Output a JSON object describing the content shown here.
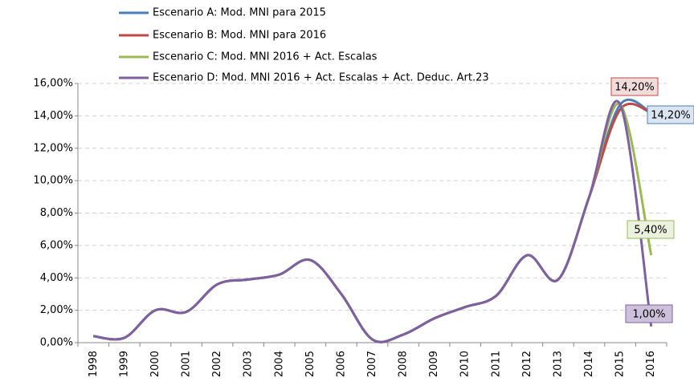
{
  "chart_data": {
    "type": "line",
    "categories": [
      "1998",
      "1999",
      "2000",
      "2001",
      "2002",
      "2003",
      "2004",
      "2005",
      "2006",
      "2007",
      "2008",
      "2009",
      "2010",
      "2011",
      "2012",
      "2013",
      "2014",
      "2015",
      "2016"
    ],
    "series": [
      {
        "name": "Escenario A: Mod. MNI para 2015",
        "color": "#4a7ebb",
        "values": [
          0.4,
          0.3,
          2.0,
          1.9,
          3.6,
          3.9,
          4.2,
          5.1,
          3.0,
          0.2,
          0.5,
          1.5,
          2.2,
          2.9,
          5.4,
          3.9,
          9.0,
          14.7,
          14.2
        ],
        "value_labels": [
          null,
          null,
          null,
          null,
          null,
          null,
          null,
          null,
          null,
          null,
          null,
          null,
          null,
          null,
          null,
          null,
          null,
          null,
          "14,20%"
        ],
        "label_fill": "#dbe5f1"
      },
      {
        "name": "Escenario B: Mod. MNI para 2016",
        "color": "#be4b48",
        "values": [
          0.4,
          0.3,
          2.0,
          1.9,
          3.6,
          3.9,
          4.2,
          5.1,
          3.0,
          0.2,
          0.5,
          1.5,
          2.2,
          2.9,
          5.4,
          3.9,
          9.0,
          14.4,
          14.2
        ],
        "value_labels": [
          null,
          null,
          null,
          null,
          null,
          null,
          null,
          null,
          null,
          null,
          null,
          null,
          null,
          null,
          null,
          null,
          null,
          null,
          "14,20%"
        ],
        "label_fill": "#f2dcdb"
      },
      {
        "name": "Escenario C: Mod. MNI 2016  + Act. Escalas",
        "color": "#98b954",
        "values": [
          0.4,
          0.3,
          2.0,
          1.9,
          3.6,
          3.9,
          4.2,
          5.1,
          3.0,
          0.2,
          0.5,
          1.5,
          2.2,
          2.9,
          5.4,
          3.9,
          9.0,
          14.7,
          5.4
        ],
        "value_labels": [
          null,
          null,
          null,
          null,
          null,
          null,
          null,
          null,
          null,
          null,
          null,
          null,
          null,
          null,
          null,
          null,
          null,
          null,
          "5,40%"
        ],
        "label_fill": "#ebf1de"
      },
      {
        "name": "Escenario D: Mod. MNI 2016  + Act. Escalas  + Act. Deduc. Art.23",
        "color": "#7d60a0",
        "values": [
          0.4,
          0.3,
          2.0,
          1.9,
          3.6,
          3.9,
          4.2,
          5.1,
          3.0,
          0.2,
          0.5,
          1.5,
          2.2,
          2.9,
          5.4,
          3.9,
          9.0,
          14.7,
          1.0
        ],
        "value_labels": [
          null,
          null,
          null,
          null,
          null,
          null,
          null,
          null,
          null,
          null,
          null,
          null,
          null,
          null,
          null,
          null,
          null,
          null,
          "1,00%"
        ],
        "label_fill": "#ccc0da"
      }
    ],
    "ylim": [
      0,
      16
    ],
    "yticks": [
      {
        "value": 0,
        "label": "0,00%"
      },
      {
        "value": 2,
        "label": "2,00%"
      },
      {
        "value": 4,
        "label": "4,00%"
      },
      {
        "value": 6,
        "label": "6,00%"
      },
      {
        "value": 8,
        "label": "8,00%"
      },
      {
        "value": 10,
        "label": "10,00%"
      },
      {
        "value": 12,
        "label": "12,00%"
      },
      {
        "value": 14,
        "label": "14,00%"
      },
      {
        "value": 16,
        "label": "16,00%"
      }
    ],
    "grid": true,
    "smooth": true
  }
}
